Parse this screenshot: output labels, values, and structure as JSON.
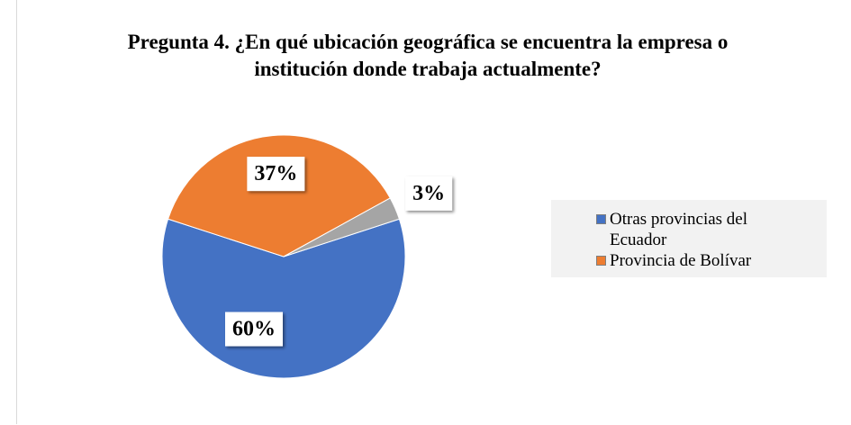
{
  "chart_data": {
    "type": "pie",
    "title": "Pregunta 4. ¿En qué ubicación geográfica se encuentra la empresa o institución donde trabaja actualmente?",
    "categories": [
      "Otras provincias del Ecuador",
      "Provincia de Bolívar",
      null
    ],
    "values": [
      60,
      37,
      3
    ],
    "value_labels": [
      "60%",
      "37%",
      "3%"
    ],
    "colors": [
      "#4472c4",
      "#ed7d31",
      "#a5a5a5"
    ],
    "legend": "right"
  }
}
